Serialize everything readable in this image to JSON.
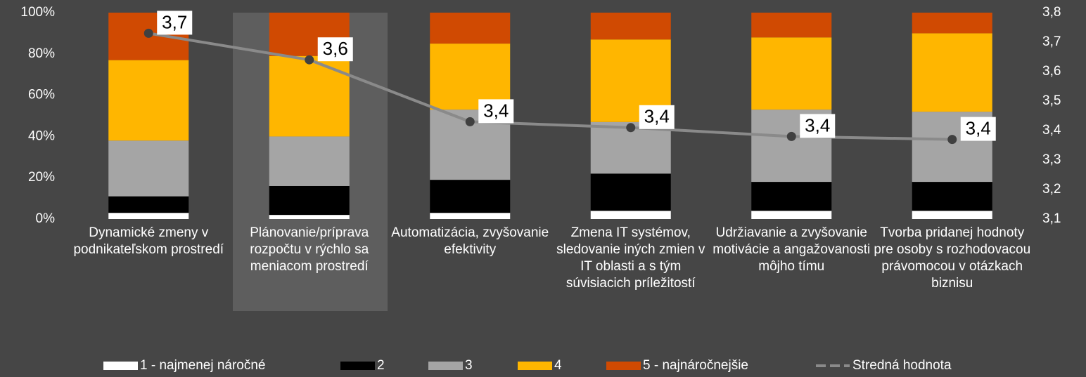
{
  "chart_data": {
    "type": "bar",
    "stacked": true,
    "categories": [
      "Dynamické zmeny v podnikateľskom prostredí",
      "Plánovanie/príprava rozpočtu v rýchlo sa meniacom prostredí",
      "Automatizácia, zvyšovanie efektivity",
      "Zmena IT systémov, sledovanie iných zmien v IT oblasti a s tým súvisiacich príležitostí",
      "Udržiavanie a zvyšovanie motivácie a angažovanosti môjho tímu",
      "Tvorba pridanej hodnoty pre osoby s rozhodovacou právomocou v otázkach biznisu"
    ],
    "series": [
      {
        "name": "1 - najmenej náročné",
        "color": "#ffffff",
        "values": [
          3,
          2,
          3,
          4,
          4,
          4
        ]
      },
      {
        "name": "2",
        "color": "#000000",
        "values": [
          8,
          14,
          16,
          18,
          14,
          14
        ]
      },
      {
        "name": "3",
        "color": "#a5a5a5",
        "values": [
          27,
          24,
          34,
          25,
          35,
          34
        ]
      },
      {
        "name": "4",
        "color": "#ffb600",
        "values": [
          39,
          39,
          32,
          40,
          35,
          38
        ]
      },
      {
        "name": "5 - najnáročnejšie",
        "color": "#d04a02",
        "values": [
          23,
          21,
          15,
          13,
          12,
          10
        ]
      },
      {
        "name": "Stredná hodnota",
        "color": "#8a8a8a",
        "type": "line",
        "axis": "y2",
        "values": [
          3.73,
          3.64,
          3.43,
          3.41,
          3.38,
          3.37
        ],
        "value_labels": [
          "3,7",
          "3,6",
          "3,4",
          "3,4",
          "3,4",
          "3,4"
        ]
      }
    ],
    "ylim": [
      0,
      100
    ],
    "yticks": [
      {
        "value": 0,
        "label": "0%"
      },
      {
        "value": 20,
        "label": "20%"
      },
      {
        "value": 40,
        "label": "40%"
      },
      {
        "value": 60,
        "label": "60%"
      },
      {
        "value": 80,
        "label": "80%"
      },
      {
        "value": 100,
        "label": "100%"
      }
    ],
    "y2lim": [
      3.1,
      3.8
    ],
    "y2ticks": [
      {
        "value": 3.1,
        "label": "3,1"
      },
      {
        "value": 3.2,
        "label": "3,2"
      },
      {
        "value": 3.3,
        "label": "3,3"
      },
      {
        "value": 3.4,
        "label": "3,4"
      },
      {
        "value": 3.5,
        "label": "3,5"
      },
      {
        "value": 3.6,
        "label": "3,6"
      },
      {
        "value": 3.7,
        "label": "3,7"
      },
      {
        "value": 3.8,
        "label": "3,8"
      }
    ],
    "grid": false,
    "legend": "bottom"
  }
}
